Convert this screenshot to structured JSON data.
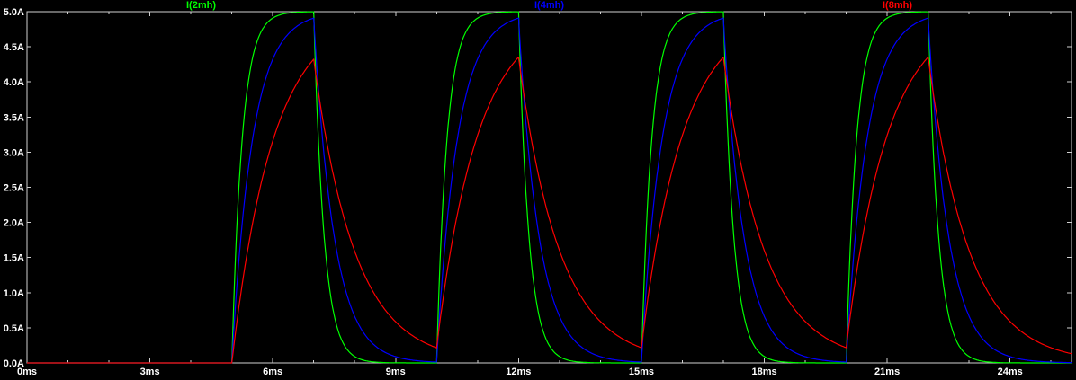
{
  "window": {
    "background_color": "#000000",
    "border_color": "#cfcfcf",
    "tick_label_color": "#ffffff"
  },
  "chart_data": {
    "type": "line",
    "title": "",
    "grid": false,
    "legend_position": "top",
    "x_unit": "ms",
    "y_unit": "A",
    "xlim": [
      0,
      25.5
    ],
    "ylim": [
      0,
      5
    ],
    "x_ticks": [
      0,
      3,
      6,
      9,
      12,
      15,
      18,
      21,
      24
    ],
    "x_tick_labels": [
      "0ms",
      "3ms",
      "6ms",
      "9ms",
      "12ms",
      "15ms",
      "18ms",
      "21ms",
      "24ms"
    ],
    "x_minor_tick_step": 1,
    "y_ticks": [
      5,
      4.5,
      4,
      3.5,
      3,
      2.5,
      2,
      1.5,
      1,
      0.5,
      0
    ],
    "y_tick_labels": [
      "5.0A",
      "4.5A",
      "4.0A",
      "3.5A",
      "3.0A",
      "2.5A",
      "2.0A",
      "1.5A",
      "1.0A",
      "0.5A",
      "0.0A"
    ],
    "source_amplitude_A": 5,
    "pulses_ms": [
      [
        5,
        7
      ],
      [
        10,
        12
      ],
      [
        15,
        17
      ],
      [
        20,
        22
      ]
    ],
    "series": [
      {
        "label": "I(2mh)",
        "color": "#00ff00",
        "tau_ms": 0.25,
        "peak_A": 5.0
      },
      {
        "label": "I(4mh)",
        "color": "#0000ff",
        "tau_ms": 0.5,
        "peak_A": 4.9
      },
      {
        "label": "I(8mh)",
        "color": "#ff0000",
        "tau_ms": 1.0,
        "peak_A": 4.32
      }
    ]
  }
}
